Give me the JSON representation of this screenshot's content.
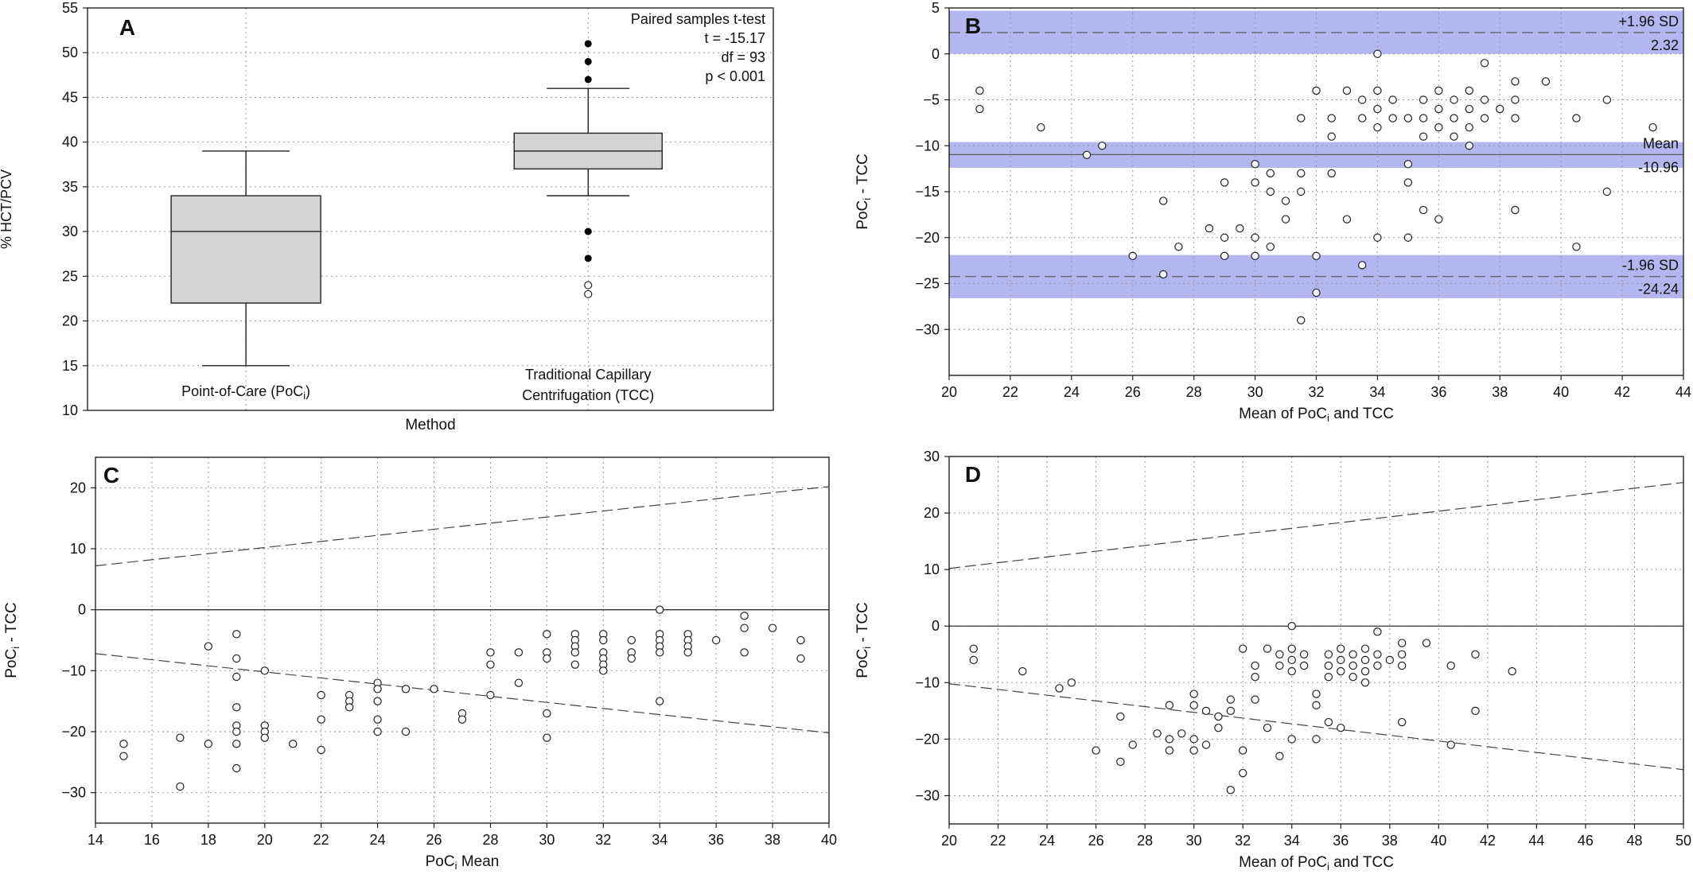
{
  "chart_data": [
    {
      "panel": "A",
      "type": "box",
      "ylabel": "% HCT/PCV",
      "xlabel": "Method",
      "ylim": [
        10,
        55
      ],
      "yticks": [
        10,
        15,
        20,
        25,
        30,
        35,
        40,
        45,
        50,
        55
      ],
      "grid": true,
      "categories": [
        {
          "lines": [
            "Point-of-Care (PoC",
            "i",
            ")"
          ],
          "min": 15,
          "q1": 22,
          "median": 30,
          "q3": 34,
          "max": 39,
          "outliers_filled": [],
          "outliers_open": []
        },
        {
          "lines": [
            "Traditional Capillary",
            "Centrifugation (TCC)"
          ],
          "min": 34,
          "q1": 37,
          "median": 39,
          "q3": 41,
          "max": 46,
          "outliers_filled": [
            47,
            49,
            51,
            30,
            27
          ],
          "outliers_open": [
            24,
            23
          ]
        }
      ],
      "annotations": [
        "Paired samples t-test",
        "t = -15.17",
        "df = 93",
        "p < 0.001"
      ]
    },
    {
      "panel": "B",
      "type": "scatter",
      "xlabel": "Mean of PoC",
      "xlabel_sub": "i",
      "xlabel_tail": " and TCC",
      "ylabel": "PoC",
      "ylabel_sub": "i",
      "ylabel_tail": " - TCC",
      "xlim": [
        20,
        44
      ],
      "ylim": [
        -35,
        5
      ],
      "xticks": [
        20,
        22,
        24,
        26,
        28,
        30,
        32,
        34,
        36,
        38,
        40,
        42,
        44
      ],
      "yticks": [
        5,
        0,
        -5,
        -10,
        -15,
        -20,
        -25,
        -30
      ],
      "grid": true,
      "lines": {
        "upper": {
          "label": "+1.96 SD",
          "value": "2.32",
          "y": 2.32,
          "band": [
            0,
            4.7
          ]
        },
        "mean": {
          "label": "Mean",
          "value": "-10.96",
          "y": -10.96,
          "band": [
            -12.4,
            -9.6
          ]
        },
        "lower": {
          "label": "-1.96 SD",
          "value": "-24.24",
          "y": -24.24,
          "band": [
            -26.6,
            -21.9
          ]
        }
      },
      "points": [
        [
          21,
          -4
        ],
        [
          21,
          -6
        ],
        [
          23,
          -8
        ],
        [
          24.5,
          -11
        ],
        [
          25,
          -10
        ],
        [
          26,
          -22
        ],
        [
          27,
          -16
        ],
        [
          27,
          -24
        ],
        [
          27.5,
          -21
        ],
        [
          28.5,
          -19
        ],
        [
          29,
          -14
        ],
        [
          29,
          -20
        ],
        [
          29,
          -22
        ],
        [
          29.5,
          -19
        ],
        [
          30,
          -12
        ],
        [
          30,
          -14
        ],
        [
          30,
          -20
        ],
        [
          30,
          -22
        ],
        [
          30.5,
          -13
        ],
        [
          30.5,
          -15
        ],
        [
          30.5,
          -21
        ],
        [
          31,
          -16
        ],
        [
          31,
          -18
        ],
        [
          31.5,
          -7
        ],
        [
          31.5,
          -13
        ],
        [
          31.5,
          -15
        ],
        [
          31.5,
          -29
        ],
        [
          32,
          -4
        ],
        [
          32,
          -22
        ],
        [
          32,
          -26
        ],
        [
          32.5,
          -7
        ],
        [
          32.5,
          -9
        ],
        [
          32.5,
          -13
        ],
        [
          33,
          -4
        ],
        [
          33,
          -18
        ],
        [
          33.5,
          -5
        ],
        [
          33.5,
          -7
        ],
        [
          33.5,
          -23
        ],
        [
          34,
          0
        ],
        [
          34,
          -4
        ],
        [
          34,
          -6
        ],
        [
          34,
          -8
        ],
        [
          34,
          -20
        ],
        [
          34.5,
          -5
        ],
        [
          34.5,
          -7
        ],
        [
          35,
          -7
        ],
        [
          35,
          -12
        ],
        [
          35,
          -14
        ],
        [
          35,
          -20
        ],
        [
          35.5,
          -5
        ],
        [
          35.5,
          -7
        ],
        [
          35.5,
          -9
        ],
        [
          35.5,
          -17
        ],
        [
          36,
          -4
        ],
        [
          36,
          -6
        ],
        [
          36,
          -8
        ],
        [
          36,
          -18
        ],
        [
          36.5,
          -5
        ],
        [
          36.5,
          -7
        ],
        [
          36.5,
          -9
        ],
        [
          37,
          -4
        ],
        [
          37,
          -6
        ],
        [
          37,
          -8
        ],
        [
          37,
          -10
        ],
        [
          37.5,
          -1
        ],
        [
          37.5,
          -5
        ],
        [
          37.5,
          -7
        ],
        [
          38,
          -6
        ],
        [
          38.5,
          -3
        ],
        [
          38.5,
          -5
        ],
        [
          38.5,
          -7
        ],
        [
          38.5,
          -17
        ],
        [
          39.5,
          -3
        ],
        [
          40.5,
          -7
        ],
        [
          40.5,
          -21
        ],
        [
          41.5,
          -5
        ],
        [
          41.5,
          -15
        ],
        [
          43,
          -8
        ]
      ]
    },
    {
      "panel": "C",
      "type": "scatter",
      "xlabel": "PoC",
      "xlabel_sub": "i",
      "xlabel_tail": " Mean",
      "ylabel": "PoC",
      "ylabel_sub": "i",
      "ylabel_tail": " - TCC",
      "xlim": [
        14,
        40
      ],
      "ylim": [
        -35,
        25
      ],
      "xticks": [
        14,
        16,
        18,
        20,
        22,
        24,
        26,
        28,
        30,
        32,
        34,
        36,
        38,
        40
      ],
      "yticks": [
        20,
        10,
        0,
        -10,
        -20,
        -30
      ],
      "grid": true,
      "zero_line": 0,
      "limit_lines": {
        "upper": [
          [
            14,
            7.2
          ],
          [
            40,
            20.2
          ]
        ],
        "lower": [
          [
            14,
            -7.2
          ],
          [
            40,
            -20.2
          ]
        ]
      },
      "points": [
        [
          15,
          -22
        ],
        [
          15,
          -24
        ],
        [
          17,
          -21
        ],
        [
          17,
          -29
        ],
        [
          18,
          -6
        ],
        [
          18,
          -22
        ],
        [
          19,
          -4
        ],
        [
          19,
          -8
        ],
        [
          19,
          -11
        ],
        [
          19,
          -16
        ],
        [
          19,
          -19
        ],
        [
          19,
          -20
        ],
        [
          19,
          -22
        ],
        [
          19,
          -26
        ],
        [
          20,
          -10
        ],
        [
          20,
          -19
        ],
        [
          20,
          -20
        ],
        [
          20,
          -21
        ],
        [
          21,
          -22
        ],
        [
          22,
          -14
        ],
        [
          22,
          -18
        ],
        [
          22,
          -23
        ],
        [
          23,
          -14
        ],
        [
          23,
          -15
        ],
        [
          23,
          -16
        ],
        [
          24,
          -12
        ],
        [
          24,
          -13
        ],
        [
          24,
          -15
        ],
        [
          24,
          -18
        ],
        [
          24,
          -20
        ],
        [
          25,
          -13
        ],
        [
          25,
          -20
        ],
        [
          26,
          -13
        ],
        [
          27,
          -17
        ],
        [
          27,
          -18
        ],
        [
          28,
          -7
        ],
        [
          28,
          -9
        ],
        [
          28,
          -14
        ],
        [
          29,
          -7
        ],
        [
          29,
          -12
        ],
        [
          30,
          -4
        ],
        [
          30,
          -7
        ],
        [
          30,
          -8
        ],
        [
          30,
          -17
        ],
        [
          30,
          -21
        ],
        [
          31,
          -4
        ],
        [
          31,
          -5
        ],
        [
          31,
          -6
        ],
        [
          31,
          -7
        ],
        [
          31,
          -9
        ],
        [
          32,
          -4
        ],
        [
          32,
          -5
        ],
        [
          32,
          -7
        ],
        [
          32,
          -8
        ],
        [
          32,
          -9
        ],
        [
          32,
          -10
        ],
        [
          33,
          -5
        ],
        [
          33,
          -7
        ],
        [
          33,
          -8
        ],
        [
          34,
          0
        ],
        [
          34,
          -4
        ],
        [
          34,
          -5
        ],
        [
          34,
          -6
        ],
        [
          34,
          -7
        ],
        [
          34,
          -15
        ],
        [
          35,
          -4
        ],
        [
          35,
          -5
        ],
        [
          35,
          -6
        ],
        [
          35,
          -7
        ],
        [
          36,
          -5
        ],
        [
          37,
          -1
        ],
        [
          37,
          -3
        ],
        [
          37,
          -7
        ],
        [
          38,
          -3
        ],
        [
          39,
          -5
        ],
        [
          39,
          -8
        ]
      ]
    },
    {
      "panel": "D",
      "type": "scatter",
      "xlabel": "Mean of PoC",
      "xlabel_sub": "i",
      "xlabel_tail": " and TCC",
      "ylabel": "PoC",
      "ylabel_sub": "i",
      "ylabel_tail": " - TCC",
      "xlim": [
        20,
        50
      ],
      "ylim": [
        -35,
        30
      ],
      "xticks": [
        20,
        22,
        24,
        26,
        28,
        30,
        32,
        34,
        36,
        38,
        40,
        42,
        44,
        46,
        48,
        50
      ],
      "yticks": [
        30,
        20,
        10,
        0,
        -10,
        -20,
        -30
      ],
      "grid": true,
      "zero_line": 0,
      "limit_lines": {
        "upper": [
          [
            20,
            10.2
          ],
          [
            50,
            25.4
          ]
        ],
        "lower": [
          [
            20,
            -10.2
          ],
          [
            50,
            -25.4
          ]
        ]
      },
      "points": [
        [
          21,
          -4
        ],
        [
          21,
          -6
        ],
        [
          23,
          -8
        ],
        [
          24.5,
          -11
        ],
        [
          25,
          -10
        ],
        [
          26,
          -22
        ],
        [
          27,
          -16
        ],
        [
          27,
          -24
        ],
        [
          27.5,
          -21
        ],
        [
          28.5,
          -19
        ],
        [
          29,
          -14
        ],
        [
          29,
          -20
        ],
        [
          29,
          -22
        ],
        [
          29.5,
          -19
        ],
        [
          30,
          -12
        ],
        [
          30,
          -14
        ],
        [
          30,
          -20
        ],
        [
          30,
          -22
        ],
        [
          30.5,
          -15
        ],
        [
          30.5,
          -21
        ],
        [
          31,
          -16
        ],
        [
          31,
          -18
        ],
        [
          31.5,
          -13
        ],
        [
          31.5,
          -15
        ],
        [
          31.5,
          -29
        ],
        [
          32,
          -4
        ],
        [
          32,
          -22
        ],
        [
          32,
          -26
        ],
        [
          32.5,
          -7
        ],
        [
          32.5,
          -9
        ],
        [
          32.5,
          -13
        ],
        [
          33,
          -4
        ],
        [
          33,
          -18
        ],
        [
          33.5,
          -5
        ],
        [
          33.5,
          -7
        ],
        [
          33.5,
          -23
        ],
        [
          34,
          0
        ],
        [
          34,
          -4
        ],
        [
          34,
          -6
        ],
        [
          34,
          -8
        ],
        [
          34,
          -20
        ],
        [
          34.5,
          -5
        ],
        [
          34.5,
          -7
        ],
        [
          35,
          -12
        ],
        [
          35,
          -14
        ],
        [
          35,
          -20
        ],
        [
          35.5,
          -5
        ],
        [
          35.5,
          -7
        ],
        [
          35.5,
          -9
        ],
        [
          35.5,
          -17
        ],
        [
          36,
          -4
        ],
        [
          36,
          -6
        ],
        [
          36,
          -8
        ],
        [
          36,
          -18
        ],
        [
          36.5,
          -5
        ],
        [
          36.5,
          -7
        ],
        [
          36.5,
          -9
        ],
        [
          37,
          -4
        ],
        [
          37,
          -6
        ],
        [
          37,
          -8
        ],
        [
          37,
          -10
        ],
        [
          37.5,
          -1
        ],
        [
          37.5,
          -5
        ],
        [
          37.5,
          -7
        ],
        [
          38,
          -6
        ],
        [
          38.5,
          -3
        ],
        [
          38.5,
          -5
        ],
        [
          38.5,
          -7
        ],
        [
          38.5,
          -17
        ],
        [
          39.5,
          -3
        ],
        [
          40.5,
          -7
        ],
        [
          40.5,
          -21
        ],
        [
          41.5,
          -5
        ],
        [
          41.5,
          -15
        ],
        [
          43,
          -8
        ]
      ]
    }
  ]
}
